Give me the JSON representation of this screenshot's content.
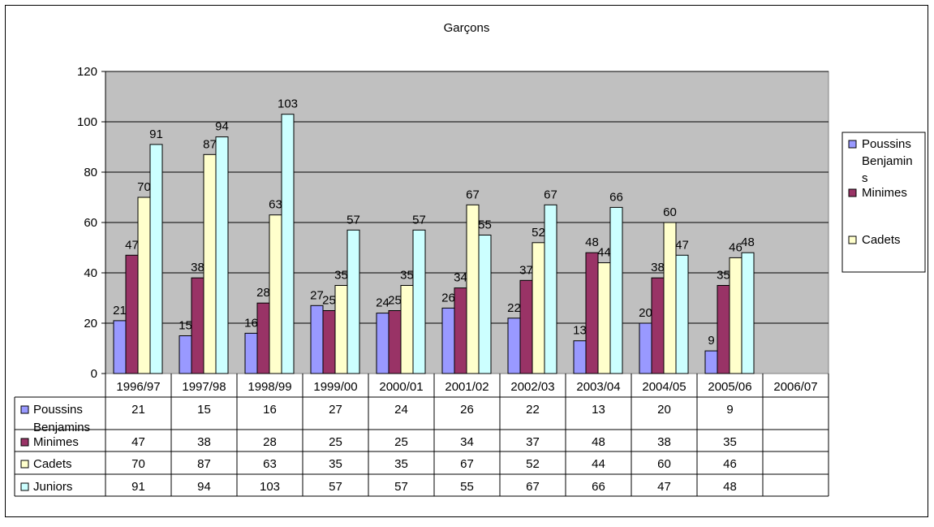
{
  "chart_data": {
    "type": "bar",
    "title": "Garçons",
    "categories": [
      "1996/97",
      "1997/98",
      "1998/99",
      "1999/00",
      "2000/01",
      "2001/02",
      "2002/03",
      "2003/04",
      "2004/05",
      "2005/06",
      "2006/07"
    ],
    "series": [
      {
        "name": "Poussins Benjamins",
        "name_lines": [
          "Poussins",
          "Benjamins"
        ],
        "legend_lines": [
          "Poussins",
          "Benjamin",
          "s"
        ],
        "values": [
          21,
          15,
          16,
          27,
          24,
          26,
          22,
          13,
          20,
          9,
          null
        ]
      },
      {
        "name": "Minimes",
        "values": [
          47,
          38,
          28,
          25,
          25,
          34,
          37,
          48,
          38,
          35,
          null
        ]
      },
      {
        "name": "Cadets",
        "values": [
          70,
          87,
          63,
          35,
          35,
          67,
          52,
          44,
          60,
          46,
          null
        ]
      },
      {
        "name": "Juniors",
        "values": [
          91,
          94,
          103,
          57,
          57,
          55,
          67,
          66,
          47,
          48,
          null
        ]
      }
    ],
    "legend_series": [
      "Poussins Benjamins",
      "Minimes",
      "Cadets"
    ],
    "ylim": [
      0,
      120
    ],
    "yticks": [
      0,
      20,
      40,
      60,
      80,
      100,
      120
    ],
    "grid": true,
    "legend_position": "right",
    "data_table": true,
    "colors": {
      "plot_background": "#c0c0c0",
      "series": [
        "#9999ff",
        "#993366",
        "#ffffcc",
        "#ccffff"
      ]
    }
  }
}
